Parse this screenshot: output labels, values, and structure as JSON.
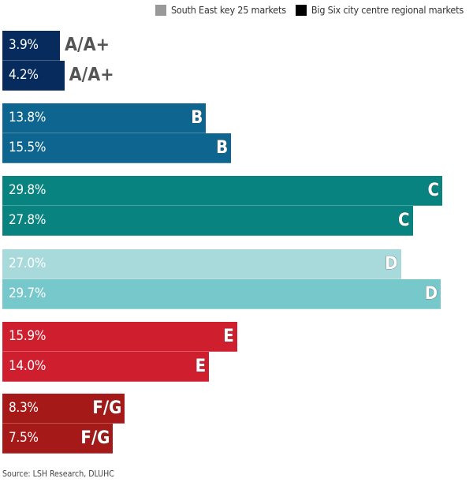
{
  "chart_data": {
    "type": "bar",
    "orientation": "horizontal",
    "categories": [
      "A/A+",
      "B",
      "C",
      "D",
      "E",
      "F/G"
    ],
    "series": [
      {
        "name": "South East key 25 markets",
        "values": [
          3.9,
          13.8,
          29.8,
          27.0,
          15.9,
          8.3
        ],
        "legend_color": "#999999"
      },
      {
        "name": "Big Six city centre regional markets",
        "values": [
          4.2,
          15.5,
          27.8,
          29.7,
          14.0,
          7.5
        ],
        "legend_color": "#000000"
      }
    ],
    "value_labels": [
      [
        "3.9%",
        "4.2%"
      ],
      [
        "13.8%",
        "15.5%"
      ],
      [
        "29.8%",
        "27.8%"
      ],
      [
        "27.0%",
        "29.7%"
      ],
      [
        "15.9%",
        "14.0%"
      ],
      [
        "8.3%",
        "7.5%"
      ]
    ],
    "category_colors": [
      [
        "#062b5c",
        "#062b5c"
      ],
      [
        "#0d6590",
        "#0d6590"
      ],
      [
        "#08837f",
        "#08837f"
      ],
      [
        "#a8d9db",
        "#77c8ca"
      ],
      [
        "#cf1f2f",
        "#cf1f2f"
      ],
      [
        "#a51a19",
        "#a51a19"
      ]
    ],
    "xlim": [
      0,
      30
    ],
    "grid": false,
    "legend_position": "top-right",
    "source": "Source: LSH Research, DLUHC"
  }
}
